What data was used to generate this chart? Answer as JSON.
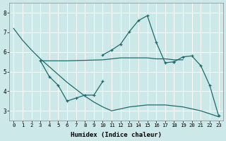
{
  "xlabel": "Humidex (Indice chaleur)",
  "bg_color": "#cce8e8",
  "grid_color": "#ffffff",
  "line_color": "#1a6b6b",
  "xlim": [
    -0.5,
    23.5
  ],
  "ylim": [
    2.5,
    8.5
  ],
  "xticks": [
    0,
    1,
    2,
    3,
    4,
    5,
    6,
    7,
    8,
    9,
    10,
    11,
    12,
    13,
    14,
    15,
    16,
    17,
    18,
    19,
    20,
    21,
    22,
    23
  ],
  "yticks": [
    3,
    4,
    5,
    6,
    7,
    8
  ],
  "curve1_x": [
    0,
    1,
    2,
    3,
    4,
    5,
    6,
    7,
    8,
    9,
    10,
    11,
    12,
    13,
    14,
    15,
    16,
    17,
    18,
    19,
    20,
    21,
    22,
    23
  ],
  "curve1_y": [
    7.2,
    6.6,
    6.1,
    5.65,
    5.25,
    4.85,
    4.45,
    4.1,
    3.75,
    3.45,
    3.2,
    3.0,
    3.1,
    3.2,
    3.25,
    3.3,
    3.3,
    3.3,
    3.25,
    3.2,
    3.1,
    3.0,
    2.85,
    2.7
  ],
  "curve2_x": [
    3,
    4,
    5,
    6,
    7,
    8,
    9,
    10
  ],
  "curve2_y": [
    5.55,
    4.75,
    4.3,
    3.5,
    3.65,
    3.8,
    3.8,
    4.5
  ],
  "curve3_x": [
    3,
    5,
    6,
    10,
    11,
    12,
    13,
    14,
    15,
    16,
    17,
    18,
    19
  ],
  "curve3_y": [
    5.55,
    5.55,
    5.55,
    5.6,
    5.65,
    5.7,
    5.7,
    5.7,
    5.7,
    5.65,
    5.65,
    5.6,
    5.6
  ],
  "curve4_x": [
    10,
    11,
    12,
    13,
    14,
    15,
    16,
    17,
    18
  ],
  "curve4_y": [
    5.85,
    6.1,
    6.4,
    7.05,
    7.6,
    7.85,
    6.5,
    5.45,
    5.5
  ],
  "curve5_x": [
    18,
    19,
    20,
    21,
    22,
    23
  ],
  "curve5_y": [
    5.5,
    5.75,
    5.8,
    5.3,
    4.3,
    2.75
  ]
}
